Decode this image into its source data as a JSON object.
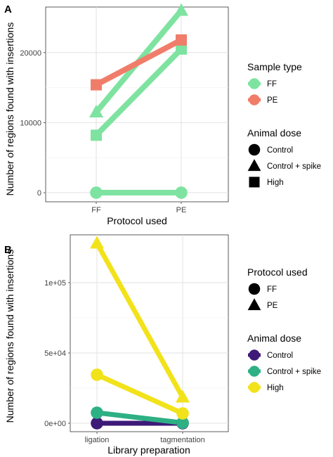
{
  "chart_data": [
    {
      "type": "line",
      "panel_label": "A",
      "xlabel": "Protocol used",
      "ylabel": "Number of regions found with insertions",
      "categories": [
        "FF",
        "PE"
      ],
      "ylim": [
        -1300,
        26500
      ],
      "yticks": [
        0,
        10000,
        20000
      ],
      "ytick_labels": [
        "0",
        "10000",
        "20000"
      ],
      "grid": true,
      "series": [
        {
          "sample": "FF",
          "dose": "Control",
          "color": "#7EE3A0",
          "shape": "circle",
          "values": [
            0,
            0
          ]
        },
        {
          "sample": "FF",
          "dose": "Control + spike",
          "color": "#7EE3A0",
          "shape": "triangle",
          "values": [
            11500,
            26000
          ]
        },
        {
          "sample": "FF",
          "dose": "High",
          "color": "#7EE3A0",
          "shape": "square",
          "values": [
            8200,
            20500
          ]
        },
        {
          "sample": "PE",
          "dose": "High",
          "color": "#F07D6A",
          "shape": "square",
          "values": [
            15400,
            21800
          ]
        }
      ],
      "legends": [
        {
          "title": "Sample type",
          "kind": "color",
          "items": [
            {
              "label": "FF",
              "color": "#7EE3A0"
            },
            {
              "label": "PE",
              "color": "#F07D6A"
            }
          ]
        },
        {
          "title": "Animal dose",
          "kind": "shape",
          "items": [
            {
              "label": "Control",
              "shape": "circle"
            },
            {
              "label": "Control + spike",
              "shape": "triangle"
            },
            {
              "label": "High",
              "shape": "square"
            }
          ]
        }
      ]
    },
    {
      "type": "line",
      "panel_label": "B",
      "xlabel": "Library preparation",
      "ylabel": "Number of regions found with insertions",
      "categories": [
        "ligation",
        "tagmentation"
      ],
      "ylim": [
        -6000,
        134000
      ],
      "yticks": [
        0,
        50000,
        100000
      ],
      "ytick_labels": [
        "0e+00",
        "5e+04",
        "1e+05"
      ],
      "grid": true,
      "series": [
        {
          "protocol": "FF",
          "dose": "Control",
          "color": "#3D1A78",
          "shape": "circle",
          "values": [
            0,
            0
          ]
        },
        {
          "protocol": "FF",
          "dose": "Control + spike",
          "color": "#2DB083",
          "shape": "circle",
          "values": [
            7500,
            300
          ]
        },
        {
          "protocol": "FF",
          "dose": "High",
          "color": "#F2E21A",
          "shape": "circle",
          "values": [
            34500,
            7000
          ]
        },
        {
          "protocol": "PE",
          "dose": "High",
          "color": "#F2E21A",
          "shape": "triangle",
          "values": [
            128000,
            18500
          ]
        }
      ],
      "legends": [
        {
          "title": "Protocol used",
          "kind": "shape",
          "items": [
            {
              "label": "FF",
              "shape": "circle"
            },
            {
              "label": "PE",
              "shape": "triangle"
            }
          ]
        },
        {
          "title": "Animal dose",
          "kind": "color",
          "items": [
            {
              "label": "Control",
              "color": "#3D1A78"
            },
            {
              "label": "Control + spike",
              "color": "#2DB083"
            },
            {
              "label": "High",
              "color": "#F2E21A"
            }
          ]
        }
      ]
    }
  ]
}
